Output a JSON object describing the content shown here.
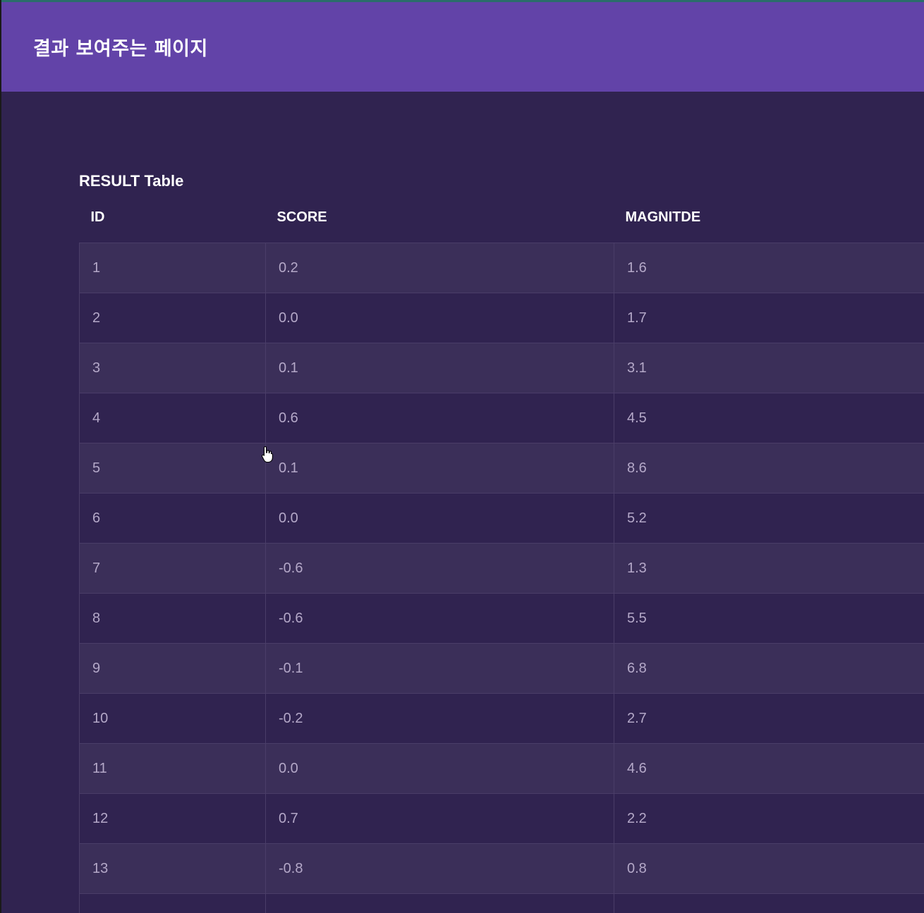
{
  "header": {
    "title": "결과 보여주는 페이지"
  },
  "table": {
    "caption": "RESULT Table",
    "columns": [
      "ID",
      "SCORE",
      "MAGNITDE"
    ],
    "rows": [
      [
        "1",
        "0.2",
        "1.6"
      ],
      [
        "2",
        "0.0",
        "1.7"
      ],
      [
        "3",
        "0.1",
        "3.1"
      ],
      [
        "4",
        "0.6",
        "4.5"
      ],
      [
        "5",
        "0.1",
        "8.6"
      ],
      [
        "6",
        "0.0",
        "5.2"
      ],
      [
        "7",
        "-0.6",
        "1.3"
      ],
      [
        "8",
        "-0.6",
        "5.5"
      ],
      [
        "9",
        "-0.1",
        "6.8"
      ],
      [
        "10",
        "-0.2",
        "2.7"
      ],
      [
        "11",
        "0.0",
        "4.6"
      ],
      [
        "12",
        "0.7",
        "2.2"
      ],
      [
        "13",
        "-0.8",
        "0.8"
      ],
      [
        "",
        "",
        ""
      ]
    ]
  },
  "colors": {
    "header_bg": "#6243a8",
    "page_bg": "#302350",
    "row_alt_bg": "#3b2f59",
    "cell_text": "#b4a8c8"
  }
}
